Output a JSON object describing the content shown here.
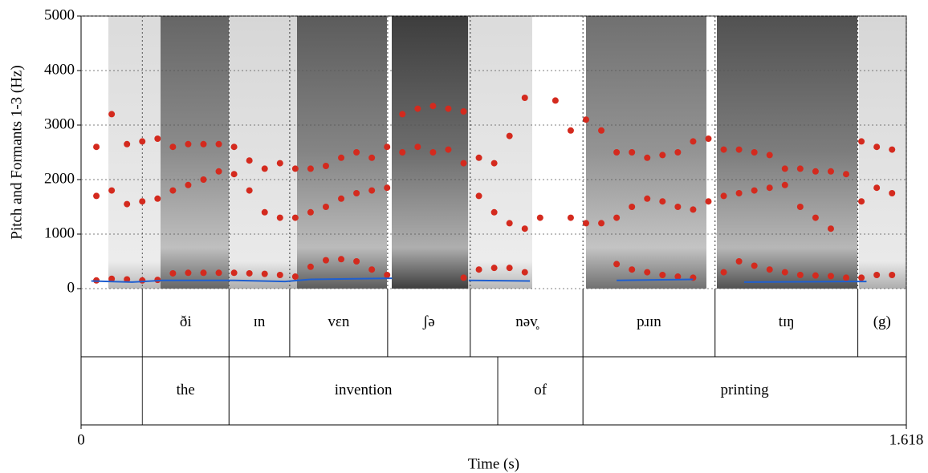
{
  "chart_data": {
    "type": "scatter",
    "ylabel": "Pitch and Formants 1-3 (Hz)",
    "xlabel": "Time (s)",
    "xlim": [
      0,
      1.618
    ],
    "xticks": [
      0,
      1.618
    ],
    "ylim": [
      0,
      5000
    ],
    "yticks": [
      0,
      1000,
      2000,
      3000,
      4000,
      5000
    ],
    "grid": true,
    "series": [
      {
        "color": "#d42a1e",
        "mode": "markers",
        "x": [
          0.03,
          0.06,
          0.09,
          0.12,
          0.15,
          0.18,
          0.21,
          0.24,
          0.27,
          0.3,
          0.33,
          0.36,
          0.39,
          0.42,
          0.45,
          0.48,
          0.51,
          0.54,
          0.57,
          0.6,
          0.63,
          0.66,
          0.69,
          0.72,
          0.75,
          0.78,
          0.81,
          0.84,
          0.87,
          0.9,
          0.93,
          0.96,
          0.99,
          1.02,
          1.05,
          1.08,
          1.11,
          1.14,
          1.17,
          1.2,
          1.23,
          1.26,
          1.29,
          1.32,
          1.35,
          1.38,
          1.41,
          1.44,
          1.47,
          1.5,
          1.53,
          1.56,
          1.59
        ],
        "values": [
          150,
          180,
          170,
          150,
          160,
          280,
          290,
          290,
          290,
          290,
          280,
          270,
          250,
          220,
          400,
          520,
          540,
          500,
          350,
          250,
          null,
          null,
          null,
          null,
          200,
          350,
          380,
          380,
          300,
          null,
          null,
          null,
          null,
          null,
          450,
          350,
          300,
          250,
          220,
          200,
          null,
          300,
          500,
          420,
          350,
          300,
          250,
          240,
          230,
          200,
          200,
          250,
          250
        ]
      },
      {
        "color": "#d42a1e",
        "mode": "markers",
        "x": [
          0.03,
          0.06,
          0.09,
          0.12,
          0.15,
          0.18,
          0.21,
          0.24,
          0.27,
          0.3,
          0.33,
          0.36,
          0.39,
          0.42,
          0.45,
          0.48,
          0.51,
          0.54,
          0.57,
          0.6,
          0.63,
          0.66,
          0.69,
          0.72,
          0.75,
          0.78,
          0.81,
          0.84,
          0.87,
          0.9,
          0.93,
          0.96,
          0.99,
          1.02,
          1.05,
          1.08,
          1.11,
          1.14,
          1.17,
          1.2,
          1.23,
          1.26,
          1.29,
          1.32,
          1.35,
          1.38,
          1.41,
          1.44,
          1.47,
          1.5,
          1.53,
          1.56,
          1.59
        ],
        "values": [
          1700,
          1800,
          1550,
          1600,
          1650,
          1800,
          1900,
          2000,
          2150,
          2100,
          1800,
          1400,
          1300,
          1300,
          1400,
          1500,
          1650,
          1750,
          1800,
          1850,
          2500,
          2600,
          2500,
          2550,
          2300,
          1700,
          1400,
          1200,
          1100,
          1300,
          null,
          1300,
          1200,
          1200,
          1300,
          1500,
          1650,
          1600,
          1500,
          1450,
          1600,
          1700,
          1750,
          1800,
          1850,
          1900,
          1500,
          1300,
          1100,
          null,
          1600,
          1850,
          1750
        ]
      },
      {
        "color": "#d42a1e",
        "mode": "markers",
        "x": [
          0.03,
          0.06,
          0.09,
          0.12,
          0.15,
          0.18,
          0.21,
          0.24,
          0.27,
          0.3,
          0.33,
          0.36,
          0.39,
          0.42,
          0.45,
          0.48,
          0.51,
          0.54,
          0.57,
          0.6,
          0.63,
          0.66,
          0.69,
          0.72,
          0.75,
          0.78,
          0.81,
          0.84,
          0.87,
          0.9,
          0.93,
          0.96,
          0.99,
          1.02,
          1.05,
          1.08,
          1.11,
          1.14,
          1.17,
          1.2,
          1.23,
          1.26,
          1.29,
          1.32,
          1.35,
          1.38,
          1.41,
          1.44,
          1.47,
          1.5,
          1.53,
          1.56,
          1.59
        ],
        "values": [
          2600,
          3200,
          2650,
          2700,
          2750,
          2600,
          2650,
          2650,
          2650,
          2600,
          2350,
          2200,
          2300,
          2200,
          2200,
          2250,
          2400,
          2500,
          2400,
          2600,
          3200,
          3300,
          3350,
          3300,
          3250,
          2400,
          2300,
          2800,
          3500,
          null,
          3450,
          2900,
          3100,
          2900,
          2500,
          2500,
          2400,
          2450,
          2500,
          2700,
          2750,
          2550,
          2550,
          2500,
          2450,
          2200,
          2200,
          2150,
          2150,
          2100,
          2700,
          2600,
          2550
        ]
      },
      {
        "color": "#1f5fd0",
        "mode": "line",
        "x": [
          0.02,
          0.1,
          0.16,
          0.3,
          0.4,
          0.45,
          0.61,
          0.7,
          0.76,
          0.88,
          0.95,
          1.05,
          1.2,
          1.25,
          1.3,
          1.5,
          1.54
        ],
        "values": [
          140,
          120,
          150,
          150,
          130,
          170,
          190,
          null,
          150,
          140,
          null,
          150,
          170,
          null,
          120,
          130,
          130
        ]
      }
    ],
    "tiers": [
      {
        "intervals": [
          {
            "start": 0.12,
            "end": 0.29,
            "text": "ði"
          },
          {
            "start": 0.29,
            "end": 0.409,
            "text": "ɪn"
          },
          {
            "start": 0.409,
            "end": 0.601,
            "text": "vɛn"
          },
          {
            "start": 0.601,
            "end": 0.763,
            "text": "ʃə"
          },
          {
            "start": 0.763,
            "end": 0.984,
            "text": "nəv̥"
          },
          {
            "start": 0.984,
            "end": 1.243,
            "text": "pɹɪn"
          },
          {
            "start": 1.243,
            "end": 1.523,
            "text": "tɪŋ"
          },
          {
            "start": 1.523,
            "end": 1.618,
            "text": "(g)"
          }
        ]
      },
      {
        "intervals": [
          {
            "start": 0.12,
            "end": 0.29,
            "text": "the"
          },
          {
            "start": 0.29,
            "end": 0.817,
            "text": "invention"
          },
          {
            "start": 0.817,
            "end": 0.984,
            "text": "of"
          },
          {
            "start": 0.984,
            "end": 1.618,
            "text": "printing"
          }
        ]
      }
    ]
  }
}
